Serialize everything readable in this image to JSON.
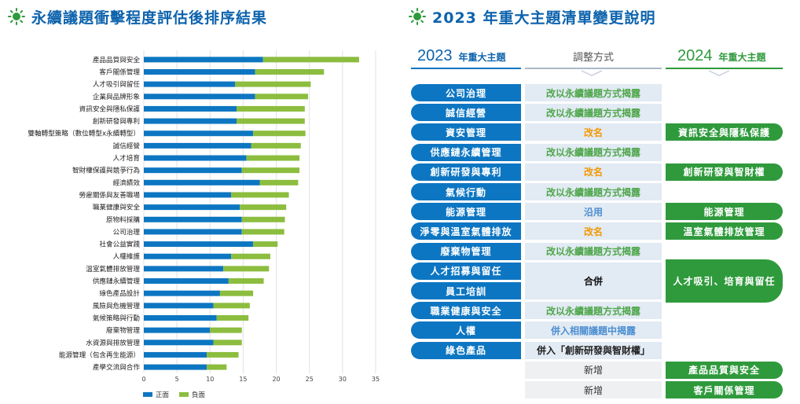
{
  "left": {
    "title": "永續議題衝擊程度評估後排序結果"
  },
  "right": {
    "title": "2023 年重大主題清單變更說明",
    "header_left_year": "2023",
    "header_left_sub": "年重大主題",
    "header_mid": "調整方式",
    "header_right_year": "2024",
    "header_right_sub": "年重大主題",
    "rows": [
      {
        "old": "公司治理",
        "method": "改以永續議題方式揭露",
        "new": ""
      },
      {
        "old": "誠信經營",
        "method": "改以永續議題方式揭露",
        "new": ""
      },
      {
        "old": "資安管理",
        "method": "改名",
        "new": "資訊安全與隱私保護"
      },
      {
        "old": "供應鏈永續管理",
        "method": "改以永續議題方式揭露",
        "new": ""
      },
      {
        "old": "創新研發與專利",
        "method": "改名",
        "new": "創新研發與智財權"
      },
      {
        "old": "氣候行動",
        "method": "改以永續議題方式揭露",
        "new": ""
      },
      {
        "old": "能源管理",
        "method": "沿用",
        "new": "能源管理"
      },
      {
        "old": "淨零與溫室氣體排放",
        "method": "改名",
        "new": "溫室氣體排放管理"
      },
      {
        "old": "廢棄物管理",
        "method": "改以永續議題方式揭露",
        "new": ""
      },
      {
        "old": "人才招募與留任",
        "method": "",
        "new": ""
      },
      {
        "old": "員工培訓",
        "method": "",
        "new": ""
      },
      {
        "old": "職業健康與安全",
        "method": "改以永續議題方式揭露",
        "new": ""
      },
      {
        "old": "人權",
        "method": "併入相關議題中揭露",
        "new": ""
      },
      {
        "old": "綠色產品",
        "method": "併入「創新研發與智財權」",
        "new": ""
      },
      {
        "old": "",
        "method": "新增",
        "new": "產品品質與安全"
      },
      {
        "old": "",
        "method": "新增",
        "new": "客戶關係管理"
      }
    ],
    "merge_method": "合併",
    "merge_new": "人才吸引、培育與留任"
  },
  "colors": {
    "positive": "#0d76c2",
    "negative": "#8cbd3f",
    "title_blue": "#0d63ad",
    "green": "#2f9a3c",
    "rename_orange": "#f39800",
    "method_green": "#4ea64a",
    "method_blue": "#4c8fd1"
  },
  "chart_data": {
    "type": "bar",
    "orientation": "horizontal",
    "stacked": true,
    "categories": [
      "產品品質與安全",
      "客戶關係管理",
      "人才吸引與留任",
      "企業與品牌形象",
      "資訊安全與隱私保護",
      "創新研發與專利",
      "雙軸轉型策略（數位轉型x永續轉型）",
      "誠信經營",
      "人才培育",
      "智財權保護與競爭行為",
      "經濟績效",
      "勞雇關係與友善職場",
      "職業健康與安全",
      "原物料採購",
      "公司治理",
      "社會公益實踐",
      "人權維護",
      "溫室氣體排放管理",
      "供應鏈永續管理",
      "綠色產品設計",
      "風險與危機管理",
      "氣候策略與行動",
      "廢棄物管理",
      "水資源與排放管理",
      "能源管理（包含再生能源）",
      "產學交流與合作"
    ],
    "series": [
      {
        "name": "正面",
        "values": [
          18.0,
          16.8,
          13.8,
          16.8,
          14.0,
          14.0,
          16.5,
          16.2,
          15.5,
          14.8,
          17.5,
          13.2,
          14.5,
          14.8,
          14.8,
          16.5,
          13.2,
          12.0,
          12.8,
          11.5,
          10.5,
          11.0,
          10.0,
          10.5,
          9.5,
          9.5
        ]
      },
      {
        "name": "負面",
        "values": [
          14.5,
          10.4,
          11.4,
          8.0,
          10.3,
          10.3,
          7.9,
          7.5,
          8.0,
          8.7,
          5.8,
          8.7,
          7.0,
          6.5,
          6.4,
          3.7,
          5.9,
          6.9,
          5.3,
          5.0,
          5.5,
          4.8,
          4.8,
          4.3,
          4.8,
          3.0
        ]
      }
    ],
    "xlim": [
      0,
      35
    ],
    "xticks": [
      0,
      5,
      10,
      15,
      20,
      25,
      30,
      35
    ],
    "legend_position": "bottom-left",
    "grid": "vertical"
  }
}
